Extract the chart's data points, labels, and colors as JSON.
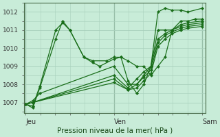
{
  "title": "Pression niveau de la mer( hPa )",
  "bg_color": "#c8ecd8",
  "grid_color": "#a8d0bc",
  "line_color": "#1a6e1a",
  "ylim": [
    1006.4,
    1012.5
  ],
  "yticks": [
    1007,
    1008,
    1009,
    1010,
    1011,
    1012
  ],
  "xtick_labels": [
    "Jeu",
    "Ven",
    "Sam"
  ],
  "xtick_positions": [
    0.0,
    0.5,
    1.0
  ],
  "series": [
    {
      "x": [
        0.0,
        0.04,
        0.08,
        0.17,
        0.21,
        0.25,
        0.33,
        0.38,
        0.42,
        0.5,
        0.54,
        0.58,
        0.63,
        0.67,
        0.71,
        0.75,
        0.79,
        0.83,
        0.88,
        0.92,
        0.96,
        1.0
      ],
      "y": [
        1006.9,
        1006.7,
        1007.8,
        1010.5,
        1011.5,
        1011.0,
        1009.5,
        1009.2,
        1009.0,
        1009.4,
        1009.5,
        1009.3,
        1009.0,
        1009.0,
        1008.5,
        1009.0,
        1009.5,
        1011.0,
        1011.5,
        1011.5,
        1011.6,
        1011.6
      ]
    },
    {
      "x": [
        0.0,
        0.04,
        0.08,
        0.17,
        0.21,
        0.25,
        0.33,
        0.38,
        0.46,
        0.5,
        0.54,
        0.58,
        0.63,
        0.67,
        0.71,
        0.75,
        0.79,
        0.83,
        0.88,
        0.92,
        1.0
      ],
      "y": [
        1006.9,
        1006.8,
        1007.9,
        1011.0,
        1011.4,
        1011.0,
        1009.5,
        1009.3,
        1009.3,
        1009.5,
        1009.5,
        1008.2,
        1007.5,
        1008.0,
        1009.0,
        1012.0,
        1012.2,
        1012.1,
        1012.1,
        1012.0,
        1012.2
      ]
    },
    {
      "x": [
        0.0,
        0.04,
        0.08,
        0.5,
        0.58,
        0.63,
        0.67,
        0.71,
        0.75,
        0.79,
        0.83,
        0.88,
        0.92,
        1.0
      ],
      "y": [
        1006.9,
        1007.1,
        1007.5,
        1009.0,
        1008.0,
        1008.0,
        1008.5,
        1009.0,
        1011.0,
        1011.0,
        1011.0,
        1011.3,
        1011.4,
        1011.5
      ]
    },
    {
      "x": [
        0.0,
        0.04,
        0.5,
        0.58,
        0.63,
        0.67,
        0.71,
        0.75,
        0.79,
        0.83,
        0.88,
        0.92,
        1.0
      ],
      "y": [
        1006.9,
        1007.0,
        1008.5,
        1007.8,
        1008.3,
        1008.7,
        1009.0,
        1010.5,
        1010.8,
        1011.0,
        1011.2,
        1011.3,
        1011.4
      ]
    },
    {
      "x": [
        0.0,
        0.04,
        0.5,
        0.58,
        0.63,
        0.67,
        0.71,
        0.75,
        0.79,
        0.83,
        0.88,
        0.92,
        1.0
      ],
      "y": [
        1006.9,
        1007.0,
        1008.3,
        1007.7,
        1008.0,
        1008.4,
        1008.8,
        1010.3,
        1010.7,
        1010.9,
        1011.1,
        1011.2,
        1011.3
      ]
    },
    {
      "x": [
        0.0,
        0.04,
        0.5,
        0.58,
        0.63,
        0.67,
        0.71,
        0.75,
        0.79,
        0.83,
        0.88,
        0.92,
        1.0
      ],
      "y": [
        1006.9,
        1007.0,
        1008.1,
        1007.7,
        1007.8,
        1008.2,
        1008.6,
        1010.1,
        1010.5,
        1010.8,
        1011.0,
        1011.1,
        1011.2
      ]
    }
  ]
}
